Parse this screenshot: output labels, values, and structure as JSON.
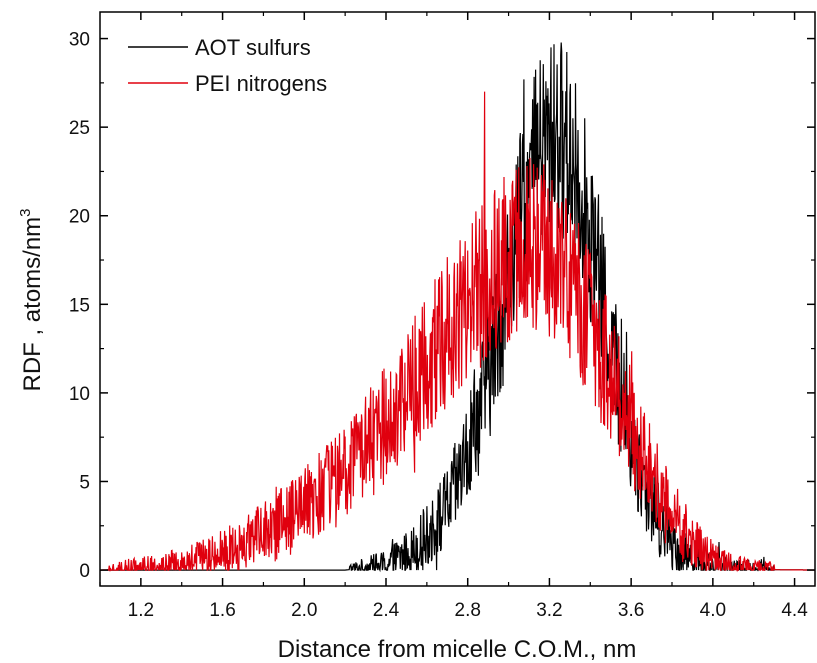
{
  "chart_data": {
    "type": "line",
    "title": "",
    "xlabel": "Distance from micelle C.O.M., nm",
    "ylabel": "RDF , atoms/nm",
    "ylabel_superscript": "3",
    "xlim": [
      1.0,
      4.5
    ],
    "ylim": [
      -0.9,
      31.5
    ],
    "xticks": [
      "1.2",
      "1.6",
      "2.0",
      "2.4",
      "2.8",
      "3.2",
      "3.6",
      "4.0",
      "4.4"
    ],
    "yticks": [
      "0",
      "5",
      "10",
      "15",
      "20",
      "25",
      "30"
    ],
    "grid": false,
    "legend_position": "top-left",
    "series": [
      {
        "name": "AOT sulfurs",
        "color": "#000000",
        "x": [
          1.0,
          2.2,
          2.3,
          2.4,
          2.45,
          2.5,
          2.55,
          2.6,
          2.65,
          2.7,
          2.75,
          2.8,
          2.85,
          2.9,
          2.95,
          3.0,
          3.05,
          3.1,
          3.15,
          3.2,
          3.25,
          3.3,
          3.35,
          3.4,
          3.45,
          3.5,
          3.55,
          3.6,
          3.65,
          3.7,
          3.75,
          3.8,
          3.85,
          3.9,
          3.95,
          4.0,
          4.1,
          4.2,
          4.5
        ],
        "y": [
          0,
          0,
          0.1,
          0.3,
          0.6,
          0.9,
          1.3,
          1.9,
          2.6,
          3.6,
          4.9,
          6.5,
          8.6,
          11.0,
          13.6,
          16.4,
          19.2,
          21.6,
          23.4,
          24.3,
          24.5,
          23.7,
          21.8,
          19.0,
          15.9,
          12.8,
          9.9,
          7.4,
          5.4,
          3.8,
          2.5,
          1.6,
          1.0,
          0.6,
          0.35,
          0.2,
          0.08,
          0.03,
          0
        ]
      },
      {
        "name": "PEI nitrogens",
        "color": "#e0000e",
        "x": [
          1.0,
          1.1,
          1.2,
          1.3,
          1.4,
          1.5,
          1.6,
          1.7,
          1.8,
          1.9,
          2.0,
          2.1,
          2.2,
          2.3,
          2.4,
          2.5,
          2.6,
          2.7,
          2.8,
          2.9,
          3.0,
          3.05,
          3.1,
          3.15,
          3.2,
          3.25,
          3.3,
          3.35,
          3.4,
          3.45,
          3.5,
          3.55,
          3.6,
          3.65,
          3.7,
          3.75,
          3.8,
          3.85,
          3.9,
          3.95,
          4.0,
          4.05,
          4.1,
          4.2,
          4.3,
          4.5
        ],
        "y": [
          0,
          0.05,
          0.12,
          0.22,
          0.35,
          0.6,
          0.95,
          1.4,
          2.0,
          2.7,
          3.5,
          4.4,
          5.5,
          6.8,
          8.3,
          10.0,
          11.7,
          13.4,
          15.1,
          16.6,
          17.8,
          18.2,
          18.4,
          18.3,
          17.9,
          17.2,
          16.3,
          15.2,
          13.9,
          12.5,
          11.0,
          9.5,
          8.0,
          6.6,
          5.3,
          4.1,
          3.1,
          2.2,
          1.5,
          1.0,
          0.6,
          0.35,
          0.2,
          0.07,
          0.02,
          0
        ]
      }
    ]
  }
}
